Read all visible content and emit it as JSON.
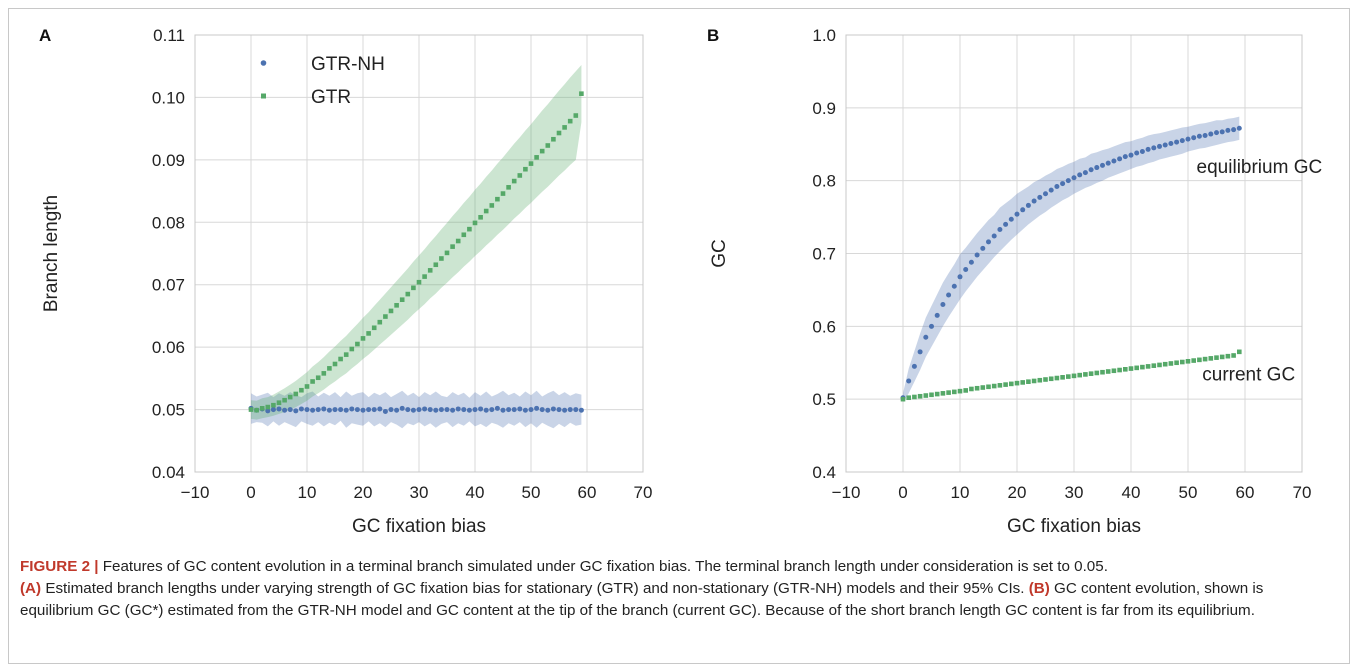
{
  "chart_data": [
    {
      "panel": "A",
      "type": "scatter",
      "xlabel": "GC fixation bias",
      "ylabel": "Branch length",
      "xlim": [
        -10,
        70
      ],
      "ylim": [
        0.04,
        0.11
      ],
      "xticks": [
        -10,
        0,
        10,
        20,
        30,
        40,
        50,
        60,
        70
      ],
      "yticks": [
        0.04,
        0.05,
        0.06,
        0.07,
        0.08,
        0.09,
        0.1,
        0.11
      ],
      "ytick_labels": [
        "0.04",
        "0.05",
        "0.06",
        "0.07",
        "0.08",
        "0.09",
        "0.10",
        "0.11"
      ],
      "grid": true,
      "legend_position": "top-left",
      "x": [
        0,
        1,
        2,
        3,
        4,
        5,
        6,
        7,
        8,
        9,
        10,
        11,
        12,
        13,
        14,
        15,
        16,
        17,
        18,
        19,
        20,
        21,
        22,
        23,
        24,
        25,
        26,
        27,
        28,
        29,
        30,
        31,
        32,
        33,
        34,
        35,
        36,
        37,
        38,
        39,
        40,
        41,
        42,
        43,
        44,
        45,
        46,
        47,
        48,
        49,
        50,
        51,
        52,
        53,
        54,
        55,
        56,
        57,
        58,
        59
      ],
      "series": [
        {
          "name": "GTR-NH",
          "color": "#4c72b0",
          "marker": "circle",
          "values": [
            0.0502,
            0.0499,
            0.0501,
            0.0498,
            0.05,
            0.0501,
            0.0499,
            0.05,
            0.0498,
            0.0501,
            0.05,
            0.0499,
            0.05,
            0.0501,
            0.0499,
            0.05,
            0.05,
            0.0499,
            0.0501,
            0.05,
            0.0499,
            0.05,
            0.05,
            0.0501,
            0.0497,
            0.05,
            0.0499,
            0.0502,
            0.05,
            0.0499,
            0.05,
            0.0501,
            0.05,
            0.0499,
            0.05,
            0.05,
            0.0499,
            0.0501,
            0.05,
            0.0499,
            0.05,
            0.0501,
            0.0499,
            0.05,
            0.0502,
            0.0499,
            0.05,
            0.05,
            0.0501,
            0.0499,
            0.05,
            0.0502,
            0.05,
            0.0499,
            0.0501,
            0.05,
            0.0499,
            0.05,
            0.05,
            0.0499
          ],
          "ci_lower": [
            0.0477,
            0.048,
            0.0479,
            0.0473,
            0.0481,
            0.0474,
            0.048,
            0.0476,
            0.0472,
            0.0481,
            0.0477,
            0.0474,
            0.048,
            0.0473,
            0.0479,
            0.0475,
            0.0482,
            0.0471,
            0.0478,
            0.0476,
            0.0474,
            0.0481,
            0.0473,
            0.0478,
            0.0472,
            0.048,
            0.0476,
            0.047,
            0.0478,
            0.0475,
            0.048,
            0.0473,
            0.0478,
            0.0471,
            0.0477,
            0.048,
            0.0472,
            0.0478,
            0.0474,
            0.0481,
            0.0473,
            0.0477,
            0.0472,
            0.0479,
            0.0476,
            0.0471,
            0.0478,
            0.0474,
            0.048,
            0.0472,
            0.0478,
            0.0471,
            0.0479,
            0.0474,
            0.047,
            0.0477,
            0.0472,
            0.0479,
            0.0474,
            0.0476
          ],
          "ci_upper": [
            0.0526,
            0.0521,
            0.0524,
            0.0527,
            0.052,
            0.0526,
            0.0522,
            0.0528,
            0.0523,
            0.052,
            0.0526,
            0.0529,
            0.0521,
            0.0527,
            0.0522,
            0.0528,
            0.052,
            0.0529,
            0.0522,
            0.0526,
            0.0528,
            0.052,
            0.0527,
            0.0523,
            0.0528,
            0.052,
            0.0525,
            0.053,
            0.0522,
            0.0527,
            0.052,
            0.0528,
            0.0523,
            0.0529,
            0.0522,
            0.052,
            0.0528,
            0.0523,
            0.0527,
            0.0519,
            0.0528,
            0.0522,
            0.0529,
            0.0521,
            0.0525,
            0.053,
            0.0523,
            0.0527,
            0.0521,
            0.0529,
            0.0523,
            0.053,
            0.0521,
            0.0526,
            0.053,
            0.0523,
            0.0528,
            0.0522,
            0.0526,
            0.0524
          ]
        },
        {
          "name": "GTR",
          "color": "#55a868",
          "marker": "square",
          "values": [
            0.05,
            0.0499,
            0.0502,
            0.0504,
            0.0507,
            0.0511,
            0.0515,
            0.052,
            0.0525,
            0.0531,
            0.0537,
            0.0545,
            0.0551,
            0.0558,
            0.0566,
            0.0573,
            0.0581,
            0.0588,
            0.0597,
            0.0605,
            0.0614,
            0.0622,
            0.0631,
            0.064,
            0.0649,
            0.0658,
            0.0667,
            0.0676,
            0.0685,
            0.0695,
            0.0704,
            0.0713,
            0.0723,
            0.0732,
            0.0742,
            0.0751,
            0.0761,
            0.077,
            0.078,
            0.0789,
            0.0799,
            0.0808,
            0.0818,
            0.0827,
            0.0837,
            0.0846,
            0.0856,
            0.0866,
            0.0875,
            0.0885,
            0.0894,
            0.0904,
            0.0914,
            0.0923,
            0.0933,
            0.0943,
            0.0952,
            0.0962,
            0.0971,
            0.1006
          ],
          "ci_lower": [
            0.0485,
            0.0484,
            0.0486,
            0.0488,
            0.049,
            0.0493,
            0.0496,
            0.05,
            0.0504,
            0.0509,
            0.0514,
            0.0521,
            0.0526,
            0.0532,
            0.0539,
            0.0545,
            0.0552,
            0.0558,
            0.0566,
            0.0573,
            0.0581,
            0.0588,
            0.0596,
            0.0604,
            0.0612,
            0.062,
            0.0628,
            0.0636,
            0.0644,
            0.0653,
            0.0661,
            0.0669,
            0.0678,
            0.0686,
            0.0695,
            0.0703,
            0.0712,
            0.072,
            0.0729,
            0.0737,
            0.0746,
            0.0754,
            0.0763,
            0.0771,
            0.078,
            0.0788,
            0.0797,
            0.0806,
            0.0814,
            0.0823,
            0.0831,
            0.084,
            0.0849,
            0.0857,
            0.0866,
            0.0875,
            0.0883,
            0.0892,
            0.09,
            0.096
          ],
          "ci_upper": [
            0.0515,
            0.0514,
            0.0518,
            0.052,
            0.0524,
            0.0529,
            0.0534,
            0.054,
            0.0546,
            0.0553,
            0.056,
            0.0569,
            0.0576,
            0.0584,
            0.0593,
            0.0601,
            0.061,
            0.0618,
            0.0628,
            0.0637,
            0.0647,
            0.0656,
            0.0666,
            0.0676,
            0.0686,
            0.0696,
            0.0706,
            0.0716,
            0.0726,
            0.0737,
            0.0747,
            0.0757,
            0.0768,
            0.0778,
            0.0789,
            0.0799,
            0.081,
            0.082,
            0.0831,
            0.0841,
            0.0852,
            0.0862,
            0.0873,
            0.0883,
            0.0894,
            0.0904,
            0.0915,
            0.0926,
            0.0936,
            0.0947,
            0.0957,
            0.0968,
            0.0979,
            0.0989,
            0.1,
            0.1011,
            0.1021,
            0.1032,
            0.1042,
            0.1052
          ]
        }
      ]
    },
    {
      "panel": "B",
      "type": "scatter",
      "xlabel": "GC fixation bias",
      "ylabel": "GC",
      "xlim": [
        -10,
        70
      ],
      "ylim": [
        0.4,
        1.0
      ],
      "xticks": [
        -10,
        0,
        10,
        20,
        30,
        40,
        50,
        60,
        70
      ],
      "yticks": [
        0.4,
        0.5,
        0.6,
        0.7,
        0.8,
        0.9,
        1.0
      ],
      "ytick_labels": [
        "0.4",
        "0.5",
        "0.6",
        "0.7",
        "0.8",
        "0.9",
        "1.0"
      ],
      "grid": true,
      "x": [
        0,
        1,
        2,
        3,
        4,
        5,
        6,
        7,
        8,
        9,
        10,
        11,
        12,
        13,
        14,
        15,
        16,
        17,
        18,
        19,
        20,
        21,
        22,
        23,
        24,
        25,
        26,
        27,
        28,
        29,
        30,
        31,
        32,
        33,
        34,
        35,
        36,
        37,
        38,
        39,
        40,
        41,
        42,
        43,
        44,
        45,
        46,
        47,
        48,
        49,
        50,
        51,
        52,
        53,
        54,
        55,
        56,
        57,
        58,
        59
      ],
      "annotations": [
        {
          "text": "equilibrium GC",
          "x": 51.5,
          "y": 0.82
        },
        {
          "text": "current GC",
          "x": 52.5,
          "y": 0.535
        }
      ],
      "series": [
        {
          "name": "equilibrium GC",
          "color": "#4c72b0",
          "marker": "circle",
          "values": [
            0.502,
            0.525,
            0.545,
            0.565,
            0.585,
            0.6,
            0.615,
            0.63,
            0.643,
            0.655,
            0.668,
            0.678,
            0.688,
            0.698,
            0.707,
            0.716,
            0.724,
            0.733,
            0.74,
            0.747,
            0.754,
            0.76,
            0.766,
            0.772,
            0.777,
            0.782,
            0.787,
            0.792,
            0.796,
            0.8,
            0.804,
            0.808,
            0.811,
            0.815,
            0.818,
            0.821,
            0.824,
            0.827,
            0.83,
            0.833,
            0.835,
            0.838,
            0.84,
            0.843,
            0.845,
            0.847,
            0.849,
            0.851,
            0.853,
            0.855,
            0.857,
            0.859,
            0.861,
            0.862,
            0.864,
            0.866,
            0.867,
            0.869,
            0.87,
            0.872
          ],
          "ci_lower": [
            0.496,
            0.508,
            0.524,
            0.54,
            0.558,
            0.572,
            0.586,
            0.6,
            0.613,
            0.625,
            0.637,
            0.648,
            0.658,
            0.668,
            0.677,
            0.686,
            0.695,
            0.703,
            0.711,
            0.719,
            0.726,
            0.733,
            0.74,
            0.746,
            0.752,
            0.757,
            0.763,
            0.768,
            0.773,
            0.777,
            0.782,
            0.786,
            0.79,
            0.793,
            0.797,
            0.8,
            0.804,
            0.807,
            0.81,
            0.813,
            0.816,
            0.819,
            0.821,
            0.824,
            0.826,
            0.829,
            0.831,
            0.833,
            0.835,
            0.837,
            0.84,
            0.842,
            0.844,
            0.845,
            0.847,
            0.849,
            0.851,
            0.853,
            0.854,
            0.856
          ],
          "ci_upper": [
            0.508,
            0.542,
            0.566,
            0.59,
            0.612,
            0.628,
            0.644,
            0.66,
            0.673,
            0.685,
            0.699,
            0.708,
            0.718,
            0.728,
            0.737,
            0.746,
            0.753,
            0.763,
            0.769,
            0.775,
            0.782,
            0.787,
            0.792,
            0.798,
            0.802,
            0.807,
            0.811,
            0.816,
            0.819,
            0.823,
            0.826,
            0.83,
            0.832,
            0.837,
            0.839,
            0.842,
            0.844,
            0.847,
            0.85,
            0.853,
            0.854,
            0.857,
            0.859,
            0.862,
            0.864,
            0.865,
            0.867,
            0.869,
            0.871,
            0.873,
            0.874,
            0.876,
            0.878,
            0.879,
            0.881,
            0.883,
            0.883,
            0.885,
            0.886,
            0.888
          ]
        },
        {
          "name": "current GC",
          "color": "#55a868",
          "marker": "square",
          "values": [
            0.5,
            0.502,
            0.503,
            0.504,
            0.505,
            0.506,
            0.507,
            0.508,
            0.509,
            0.51,
            0.511,
            0.512,
            0.514,
            0.515,
            0.516,
            0.517,
            0.518,
            0.519,
            0.52,
            0.521,
            0.522,
            0.523,
            0.524,
            0.525,
            0.526,
            0.527,
            0.528,
            0.529,
            0.53,
            0.531,
            0.532,
            0.533,
            0.534,
            0.535,
            0.536,
            0.537,
            0.538,
            0.539,
            0.54,
            0.541,
            0.542,
            0.543,
            0.544,
            0.545,
            0.546,
            0.547,
            0.548,
            0.549,
            0.55,
            0.551,
            0.552,
            0.553,
            0.554,
            0.555,
            0.556,
            0.557,
            0.558,
            0.559,
            0.56,
            0.565
          ]
        }
      ]
    }
  ],
  "caption": {
    "figure_label": "FIGURE 2 |",
    "text": " Features of GC content evolution in a terminal branch simulated under GC fixation bias. The terminal branch length under consideration is set to 0.05.",
    "part_a_label": "(A)",
    "part_a_text": " Estimated branch lengths under varying strength of GC fixation bias for stationary (GTR) and non-stationary (GTR-NH) models and their 95% CIs.",
    "part_b_label": "(B)",
    "part_b_text": " GC content evolution, shown is equilibrium GC (GC*) estimated from the GTR-NH model and GC content at the tip of the branch (current GC). Because of the short branch length GC content is far from its equilibrium."
  }
}
